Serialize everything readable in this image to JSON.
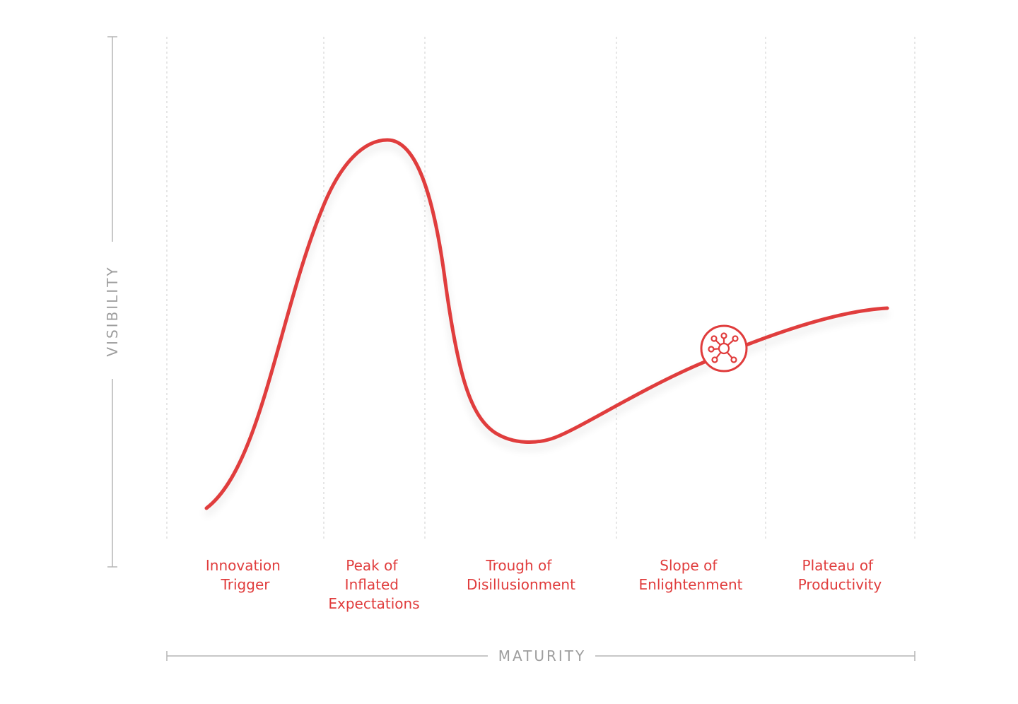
{
  "axes": {
    "y_label": "VISIBILITY",
    "x_label": "MATURITY"
  },
  "phases": [
    {
      "label_lines": [
        "Innovation",
        "Trigger"
      ]
    },
    {
      "label_lines": [
        "Peak of",
        "Inflated",
        "Expectations"
      ]
    },
    {
      "label_lines": [
        "Trough of",
        "Disillusionment"
      ]
    },
    {
      "label_lines": [
        "Slope of",
        "Enlightenment"
      ]
    },
    {
      "label_lines": [
        "Plateau of",
        "Productivity"
      ]
    }
  ],
  "marker": {
    "icon": "network-hub-icon",
    "phase": "Slope of Enlightenment"
  },
  "colors": {
    "curve": "#e03c3c",
    "phase_label": "#e03c3c",
    "axis": "#b5b5b5",
    "axis_label": "#9e9e9e",
    "divider": "#d6d6d6"
  }
}
